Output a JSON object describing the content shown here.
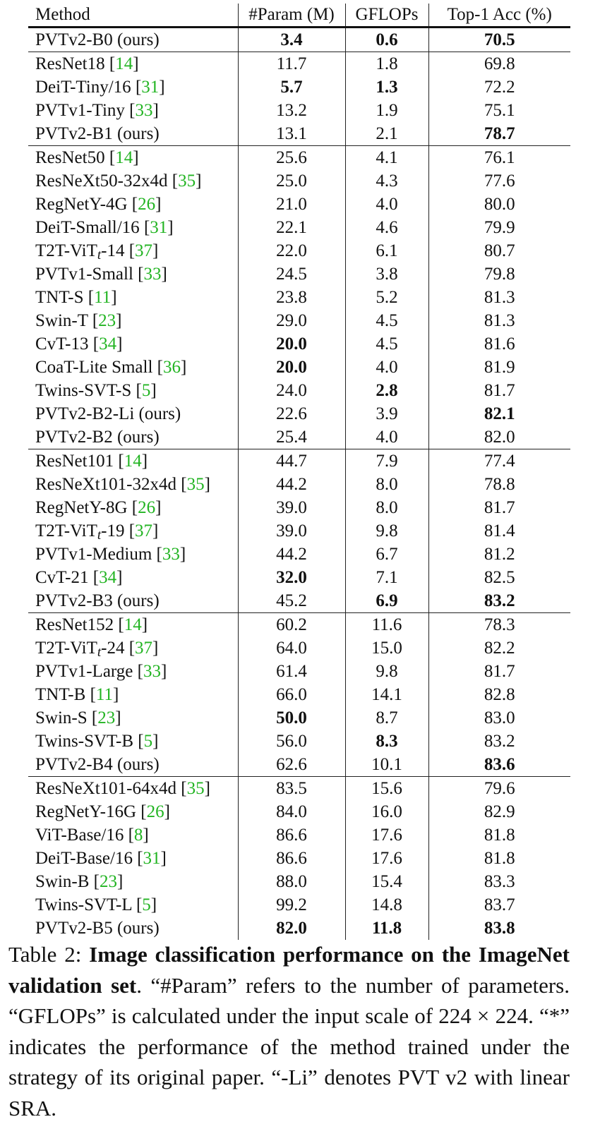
{
  "table": {
    "headers": [
      "Method",
      "#Param (M)",
      "GFLOPs",
      "Top-1 Acc (%)"
    ],
    "groups": [
      {
        "rows": [
          {
            "method": "PVTv2-B0 (ours)",
            "param": "3.4",
            "gflops": "0.6",
            "acc": "70.5",
            "bold": [
              "param",
              "gflops",
              "acc"
            ]
          }
        ]
      },
      {
        "rows": [
          {
            "method": "ResNet18",
            "ref": "14",
            "param": "11.7",
            "gflops": "1.8",
            "acc": "69.8",
            "bold": []
          },
          {
            "method": "DeiT-Tiny/16",
            "ref": "31",
            "param": "5.7",
            "gflops": "1.3",
            "acc": "72.2",
            "bold": [
              "param",
              "gflops"
            ]
          },
          {
            "method": "PVTv1-Tiny",
            "ref": "33",
            "param": "13.2",
            "gflops": "1.9",
            "acc": "75.1",
            "bold": []
          },
          {
            "method": "PVTv2-B1 (ours)",
            "param": "13.1",
            "gflops": "2.1",
            "acc": "78.7",
            "bold": [
              "acc"
            ]
          }
        ]
      },
      {
        "rows": [
          {
            "method": "ResNet50",
            "ref": "14",
            "param": "25.6",
            "gflops": "4.1",
            "acc": "76.1",
            "bold": []
          },
          {
            "method": "ResNeXt50-32x4d",
            "ref": "35",
            "param": "25.0",
            "gflops": "4.3",
            "acc": "77.6",
            "bold": []
          },
          {
            "method": "RegNetY-4G",
            "ref": "26",
            "param": "21.0",
            "gflops": "4.0",
            "acc": "80.0",
            "bold": []
          },
          {
            "method": "DeiT-Small/16",
            "ref": "31",
            "param": "22.1",
            "gflops": "4.6",
            "acc": "79.9",
            "bold": []
          },
          {
            "method": "T2T-ViT",
            "sub": "t",
            "suffix": "-14",
            "ref": "37",
            "param": "22.0",
            "gflops": "6.1",
            "acc": "80.7",
            "bold": []
          },
          {
            "method": "PVTv1-Small",
            "ref": "33",
            "param": "24.5",
            "gflops": "3.8",
            "acc": "79.8",
            "bold": []
          },
          {
            "method": "TNT-S",
            "ref": "11",
            "param": "23.8",
            "gflops": "5.2",
            "acc": "81.3",
            "bold": []
          },
          {
            "method": "Swin-T",
            "ref": "23",
            "param": "29.0",
            "gflops": "4.5",
            "acc": "81.3",
            "bold": []
          },
          {
            "method": "CvT-13",
            "ref": "34",
            "param": "20.0",
            "gflops": "4.5",
            "acc": "81.6",
            "bold": [
              "param"
            ]
          },
          {
            "method": "CoaT-Lite Small",
            "ref": "36",
            "param": "20.0",
            "gflops": "4.0",
            "acc": "81.9",
            "bold": [
              "param"
            ]
          },
          {
            "method": "Twins-SVT-S",
            "ref": "5",
            "param": "24.0",
            "gflops": "2.8",
            "acc": "81.7",
            "bold": [
              "gflops"
            ]
          },
          {
            "method": "PVTv2-B2-Li (ours)",
            "param": "22.6",
            "gflops": "3.9",
            "acc": "82.1",
            "bold": [
              "acc"
            ]
          },
          {
            "method": "PVTv2-B2 (ours)",
            "param": "25.4",
            "gflops": "4.0",
            "acc": "82.0",
            "bold": []
          }
        ]
      },
      {
        "rows": [
          {
            "method": "ResNet101",
            "ref": "14",
            "param": "44.7",
            "gflops": "7.9",
            "acc": "77.4",
            "bold": []
          },
          {
            "method": "ResNeXt101-32x4d",
            "ref": "35",
            "param": "44.2",
            "gflops": "8.0",
            "acc": "78.8",
            "bold": []
          },
          {
            "method": "RegNetY-8G",
            "ref": "26",
            "param": "39.0",
            "gflops": "8.0",
            "acc": "81.7",
            "bold": []
          },
          {
            "method": "T2T-ViT",
            "sub": "t",
            "suffix": "-19",
            "ref": "37",
            "param": "39.0",
            "gflops": "9.8",
            "acc": "81.4",
            "bold": []
          },
          {
            "method": "PVTv1-Medium",
            "ref": "33",
            "param": "44.2",
            "gflops": "6.7",
            "acc": "81.2",
            "bold": []
          },
          {
            "method": "CvT-21",
            "ref": "34",
            "param": "32.0",
            "gflops": "7.1",
            "acc": "82.5",
            "bold": [
              "param"
            ]
          },
          {
            "method": "PVTv2-B3 (ours)",
            "param": "45.2",
            "gflops": "6.9",
            "acc": "83.2",
            "bold": [
              "gflops",
              "acc"
            ]
          }
        ]
      },
      {
        "rows": [
          {
            "method": "ResNet152",
            "ref": "14",
            "param": "60.2",
            "gflops": "11.6",
            "acc": "78.3",
            "bold": []
          },
          {
            "method": "T2T-ViT",
            "sub": "t",
            "suffix": "-24 ",
            "ref": "37",
            "param": "64.0",
            "gflops": "15.0",
            "acc": "82.2",
            "bold": []
          },
          {
            "method": "PVTv1-Large ",
            "ref": "33",
            "param": "61.4",
            "gflops": "9.8",
            "acc": "81.7",
            "bold": []
          },
          {
            "method": "TNT-B ",
            "ref": "11",
            "param": "66.0",
            "gflops": "14.1",
            "acc": "82.8",
            "bold": []
          },
          {
            "method": "Swin-S ",
            "ref": "23",
            "param": "50.0",
            "gflops": "8.7",
            "acc": "83.0",
            "bold": [
              "param"
            ]
          },
          {
            "method": "Twins-SVT-B",
            "ref": "5",
            "param": "56.0",
            "gflops": "8.3",
            "acc": "83.2",
            "bold": [
              "gflops"
            ]
          },
          {
            "method": "PVTv2-B4 (ours)",
            "param": "62.6",
            "gflops": "10.1",
            "acc": "83.6",
            "bold": [
              "acc"
            ]
          }
        ]
      },
      {
        "rows": [
          {
            "method": "ResNeXt101-64x4d",
            "ref": "35",
            "param": "83.5",
            "gflops": "15.6",
            "acc": "79.6",
            "bold": []
          },
          {
            "method": "RegNetY-16G",
            "ref": "26",
            "param": "84.0",
            "gflops": "16.0",
            "acc": "82.9",
            "bold": []
          },
          {
            "method": "ViT-Base/16",
            "ref": "8",
            "param": "86.6",
            "gflops": "17.6",
            "acc": "81.8",
            "bold": []
          },
          {
            "method": "DeiT-Base/16",
            "ref": "31",
            "param": "86.6",
            "gflops": "17.6",
            "acc": "81.8",
            "bold": []
          },
          {
            "method": "Swin-B",
            "ref": "23",
            "param": "88.0",
            "gflops": "15.4",
            "acc": "83.3",
            "bold": []
          },
          {
            "method": "Twins-SVT-L",
            "ref": "5",
            "param": "99.2",
            "gflops": "14.8",
            "acc": "83.7",
            "bold": []
          },
          {
            "method": "PVTv2-B5 (ours)",
            "param": "82.0",
            "gflops": "11.8",
            "acc": "83.8",
            "bold": [
              "param",
              "gflops",
              "acc"
            ]
          }
        ]
      }
    ]
  },
  "caption": {
    "label": "Table 2: ",
    "bold": "Image classification performance on the ImageNet validation set",
    "rest": ". “#Param” refers to the number of parameters. “GFLOPs” is calculated under the input scale of 224 × 224. “*” indicates the performance of the method trained under the strategy of its original paper. “-Li” denotes PVT v2 with linear SRA."
  },
  "colors": {
    "reference_link": "#22b422",
    "text": "#111111"
  }
}
